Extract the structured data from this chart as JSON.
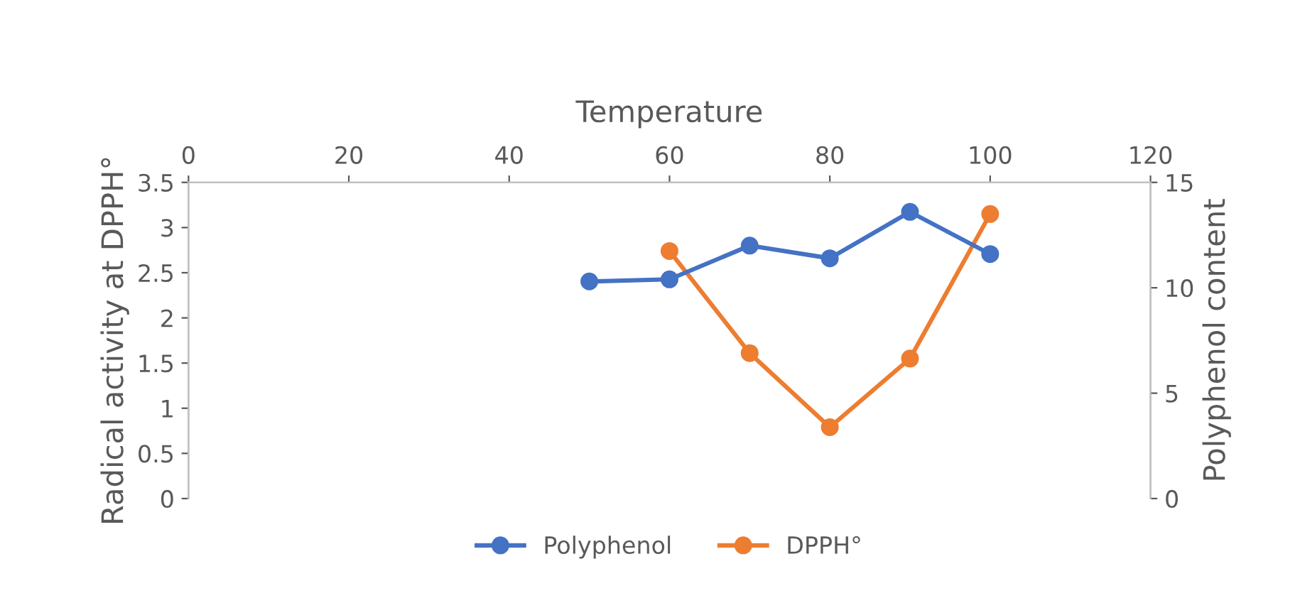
{
  "chart_data": {
    "type": "line",
    "xlabel": "Temperature",
    "ylabel": "Radical activity at DPPH°",
    "y2label": "Polyphenol content",
    "xlim": [
      0,
      120
    ],
    "xticks": [
      0,
      20,
      40,
      60,
      80,
      100,
      120
    ],
    "ylim": [
      0,
      3.5
    ],
    "yticks": [
      0,
      0.5,
      1,
      1.5,
      2,
      2.5,
      3,
      3.5
    ],
    "y2lim": [
      0,
      15
    ],
    "y2ticks": [
      0,
      5,
      10,
      15
    ],
    "series": [
      {
        "name": "Polyphenol",
        "color": "#4472c4",
        "axis": "y2",
        "x": [
          50,
          60,
          70,
          80,
          90,
          100
        ],
        "values": [
          10.3,
          10.4,
          12.0,
          11.4,
          13.6,
          11.6
        ]
      },
      {
        "name": "DPPH°",
        "color": "#ed7d31",
        "x": [
          60,
          70,
          80,
          90,
          100
        ],
        "values": [
          2.74,
          1.61,
          0.79,
          1.55,
          3.15
        ]
      }
    ],
    "marker": "circle",
    "line_style": "solid",
    "grid": false,
    "legend": "bottom"
  }
}
